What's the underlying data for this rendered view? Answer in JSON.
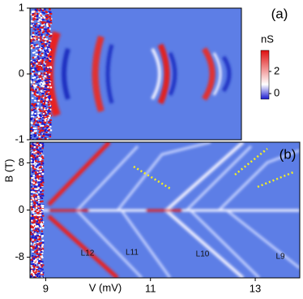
{
  "chart_data": [
    {
      "type": "heatmap",
      "panel_label": "(a)",
      "ylim": [
        -1,
        1
      ],
      "yticks": [
        -1,
        0,
        1
      ],
      "colorbar": {
        "label": "nS",
        "lim": [
          -0.5,
          3.9
        ],
        "ticks": [
          0,
          2
        ],
        "colors": [
          "#1a1ad0",
          "#ffffff",
          "#e01010"
        ]
      }
    },
    {
      "type": "heatmap",
      "panel_label": "(b)",
      "ylabel": "B (T)",
      "xlabel": "V (mV)",
      "xlim": [
        8.7,
        13.85
      ],
      "xticks": [
        9,
        11,
        13
      ],
      "ylim": [
        -11.5,
        11.5
      ],
      "yticks": [
        -8,
        0,
        8
      ],
      "annotations": [
        "L12",
        "L11",
        "L10",
        "L9"
      ]
    }
  ]
}
